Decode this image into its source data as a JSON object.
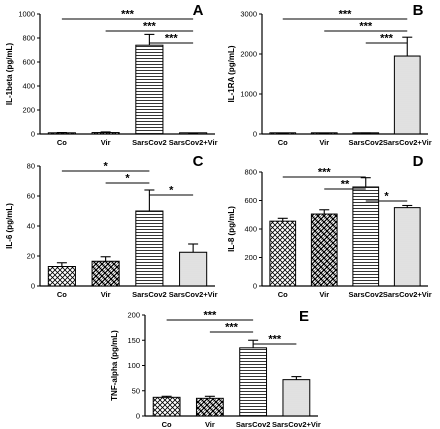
{
  "chart_data": [
    {
      "panel": "A",
      "type": "bar",
      "ylabel": "IL-1beta (pg/mL)",
      "categories": [
        "Co",
        "Vir",
        "SarsCov2",
        "SarsCov2+Vir"
      ],
      "values": [
        8,
        12,
        740,
        5
      ],
      "errors": [
        4,
        5,
        90,
        3
      ],
      "ylim": [
        0,
        1000
      ],
      "yticks": [
        0,
        200,
        400,
        600,
        800,
        1000
      ],
      "patterns": [
        "cross",
        "check",
        "hlines",
        "dots"
      ],
      "significance": [
        {
          "from": 0,
          "to": 3,
          "label": "***"
        },
        {
          "from": 1,
          "to": 3,
          "label": "***"
        },
        {
          "from": 2,
          "to": 3,
          "label": "***"
        }
      ]
    },
    {
      "panel": "B",
      "type": "bar",
      "ylabel": "IL-1RA (pg/mL)",
      "categories": [
        "Co",
        "Vir",
        "SarsCov2",
        "SarsCov2+Vir"
      ],
      "values": [
        8,
        8,
        20,
        1950
      ],
      "errors": [
        3,
        3,
        6,
        470
      ],
      "ylim": [
        0,
        3000
      ],
      "yticks": [
        0,
        1000,
        2000,
        3000
      ],
      "patterns": [
        "cross",
        "check",
        "hlines",
        "dots"
      ],
      "significance": [
        {
          "from": 0,
          "to": 3,
          "label": "***"
        },
        {
          "from": 1,
          "to": 3,
          "label": "***"
        },
        {
          "from": 2,
          "to": 3,
          "label": "***"
        }
      ]
    },
    {
      "panel": "C",
      "type": "bar",
      "ylabel": "IL-6 (pg/mL)",
      "categories": [
        "Co",
        "Vir",
        "SarsCov2",
        "SarsCov2+Vir"
      ],
      "values": [
        13,
        16.5,
        50,
        22.5
      ],
      "errors": [
        2.5,
        3,
        14,
        5.5
      ],
      "ylim": [
        0,
        80
      ],
      "yticks": [
        0,
        20,
        40,
        60,
        80
      ],
      "patterns": [
        "cross",
        "check",
        "hlines",
        "dots"
      ],
      "significance": [
        {
          "from": 0,
          "to": 2,
          "label": "*"
        },
        {
          "from": 1,
          "to": 2,
          "label": "*"
        },
        {
          "from": 2,
          "to": 3,
          "label": "*"
        }
      ]
    },
    {
      "panel": "D",
      "type": "bar",
      "ylabel": "IL-8 (pg/mL)",
      "categories": [
        "Co",
        "Vir",
        "SarsCov2",
        "SarsCov2+Vir"
      ],
      "values": [
        455,
        505,
        695,
        550
      ],
      "errors": [
        20,
        30,
        65,
        15
      ],
      "ylim": [
        0,
        800
      ],
      "yticks": [
        0,
        200,
        400,
        600,
        800
      ],
      "patterns": [
        "cross",
        "check",
        "hlines",
        "dots"
      ],
      "significance": [
        {
          "from": 0,
          "to": 2,
          "label": "***"
        },
        {
          "from": 1,
          "to": 2,
          "label": "**"
        },
        {
          "from": 2,
          "to": 3,
          "label": "*"
        }
      ]
    },
    {
      "panel": "E",
      "type": "bar",
      "ylabel": "TNF-alpha (pg/mL)",
      "categories": [
        "Co",
        "Vir",
        "SarsCov2",
        "SarsCov2+Vir"
      ],
      "values": [
        37,
        35,
        135,
        72
      ],
      "errors": [
        2,
        4,
        15,
        6
      ],
      "ylim": [
        0,
        200
      ],
      "yticks": [
        0,
        50,
        100,
        150,
        200
      ],
      "patterns": [
        "cross",
        "check",
        "hlines",
        "dots"
      ],
      "significance": [
        {
          "from": 0,
          "to": 2,
          "label": "***"
        },
        {
          "from": 1,
          "to": 2,
          "label": "***"
        },
        {
          "from": 2,
          "to": 3,
          "label": "***"
        }
      ]
    }
  ]
}
